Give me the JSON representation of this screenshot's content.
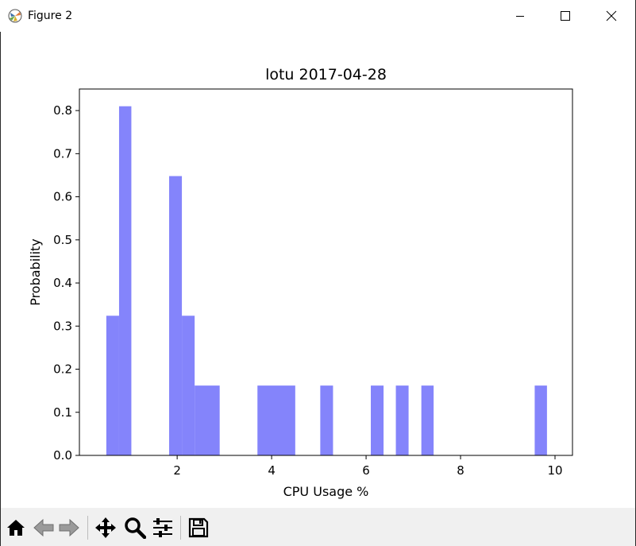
{
  "window": {
    "title": "Figure 2"
  },
  "icons": {
    "app": "matplotlib-icon",
    "minimize": "minimize-icon",
    "maximize": "maximize-icon",
    "close": "close-icon"
  },
  "toolbar": {
    "items": [
      "home-icon",
      "back-icon",
      "forward-icon",
      "pan-icon",
      "zoom-icon",
      "configure-subplots-icon",
      "save-icon"
    ]
  },
  "colors": {
    "bar": "#8484fb",
    "toolbar_bg": "#f0f0f0"
  },
  "chart_data": {
    "type": "bar",
    "title": "lotu 2017-04-28",
    "xlabel": "CPU Usage %",
    "ylabel": "Probability",
    "xlim": [
      -0.07,
      10.37
    ],
    "ylim": [
      0,
      0.85
    ],
    "xticks": [
      2,
      4,
      6,
      8,
      10
    ],
    "xtick_labels": [
      "2",
      "4",
      "6",
      "8",
      "10"
    ],
    "yticks": [
      0.0,
      0.1,
      0.2,
      0.3,
      0.4,
      0.5,
      0.6,
      0.7,
      0.8
    ],
    "ytick_labels": [
      "0.0",
      "0.1",
      "0.2",
      "0.3",
      "0.4",
      "0.5",
      "0.6",
      "0.7",
      "0.8"
    ],
    "bars": [
      {
        "x0": 0.5,
        "x1": 0.77,
        "value": 0.324
      },
      {
        "x0": 0.77,
        "x1": 1.03,
        "value": 0.81
      },
      {
        "x0": 1.83,
        "x1": 2.1,
        "value": 0.648
      },
      {
        "x0": 2.1,
        "x1": 2.37,
        "value": 0.324
      },
      {
        "x0": 2.37,
        "x1": 2.9,
        "value": 0.162
      },
      {
        "x0": 3.7,
        "x1": 4.5,
        "value": 0.162
      },
      {
        "x0": 5.03,
        "x1": 5.3,
        "value": 0.162
      },
      {
        "x0": 6.1,
        "x1": 6.37,
        "value": 0.162
      },
      {
        "x0": 6.63,
        "x1": 6.9,
        "value": 0.162
      },
      {
        "x0": 7.17,
        "x1": 7.43,
        "value": 0.162
      },
      {
        "x0": 9.57,
        "x1": 9.83,
        "value": 0.162
      }
    ]
  }
}
